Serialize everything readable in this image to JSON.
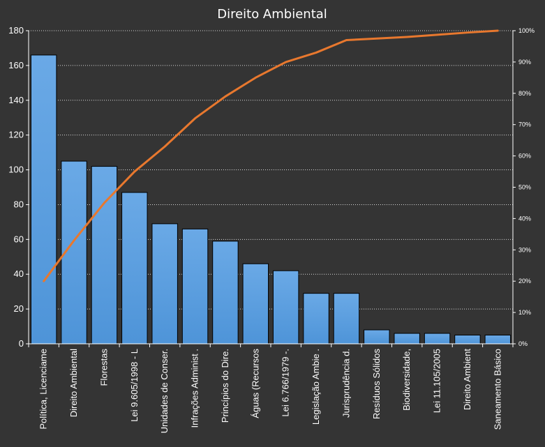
{
  "chart_data": {
    "type": "bar",
    "title": "Direito Ambiental",
    "categories": [
      "Política, Licenciame",
      "Direito Ambiental",
      "Florestas",
      "Lei 9.605/1998 - L",
      "Unidades de Conser.",
      "Infrações Administ .",
      "Princípios do Dire.",
      "Águas (Recursos",
      "Lei 6.766/1979 -.",
      "Legislação Ambie .",
      "Jurisprudência d.",
      "Resíduos Sólidos",
      "Biodiversidade,",
      "Lei 11.105/2005",
      "Direito Ambient",
      "Saneamento Básico"
    ],
    "series": [
      {
        "type": "bar",
        "axis": "left",
        "color": "#4e94d8",
        "values": [
          166,
          105,
          102,
          87,
          69,
          66,
          59,
          46,
          42,
          29,
          29,
          8,
          6,
          6,
          5,
          5
        ]
      },
      {
        "type": "line",
        "axis": "right",
        "color": "#e8782e",
        "values": [
          20,
          33,
          45,
          55,
          63,
          72,
          79,
          85,
          90,
          93,
          97,
          97.5,
          98,
          98.7,
          99.4,
          100
        ]
      }
    ],
    "ylim": [
      0,
      180
    ],
    "yticks": [
      0,
      20,
      40,
      60,
      80,
      100,
      120,
      140,
      160,
      180
    ],
    "y2lim": [
      0,
      100
    ],
    "y2ticks": [
      "0%",
      "10%",
      "20%",
      "30%",
      "40%",
      "50%",
      "60%",
      "70%",
      "80%",
      "90%",
      "100%"
    ],
    "grid": true,
    "legend": "none"
  }
}
